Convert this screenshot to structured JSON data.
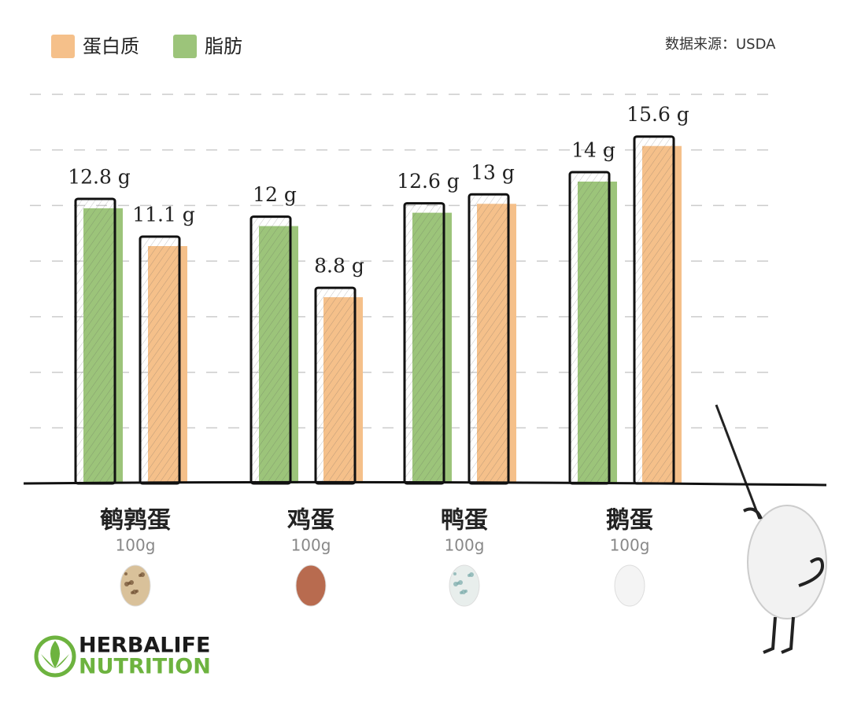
{
  "chart_data": {
    "type": "bar",
    "source": "数据来源：USDA",
    "categories": [
      "鹌鹑蛋",
      "鸡蛋",
      "鸭蛋",
      "鹅蛋"
    ],
    "category_notes": [
      "100g",
      "100g",
      "100g",
      "100g"
    ],
    "series": [
      {
        "name": "蛋白质",
        "color": "#f5c08a",
        "values": [
          11.1,
          8.8,
          13,
          15.6
        ],
        "value_labels": [
          "11.1 g",
          "8.8 g",
          "13 g",
          "15.6 g"
        ]
      },
      {
        "name": "脂肪",
        "color": "#9cc47a",
        "values": [
          12.8,
          12,
          12.6,
          14
        ],
        "value_labels": [
          "12.8 g",
          "12 g",
          "12.6 g",
          "14 g"
        ]
      }
    ],
    "ylim": [
      0,
      17.5
    ],
    "yticks": [
      2.5,
      5,
      7.5,
      10,
      12.5,
      15,
      17.5
    ],
    "grid": true,
    "logo": {
      "line1": "HERBALIFE",
      "line2": "NUTRITION"
    }
  }
}
